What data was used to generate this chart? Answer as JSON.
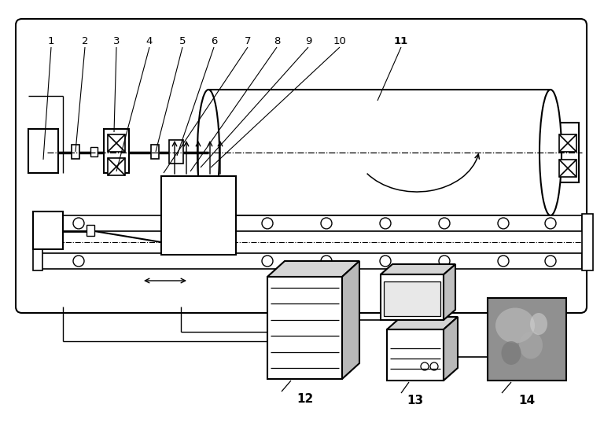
{
  "bg_color": "#ffffff",
  "line_color": "#000000",
  "fig_w": 7.68,
  "fig_h": 5.52,
  "dpi": 100
}
